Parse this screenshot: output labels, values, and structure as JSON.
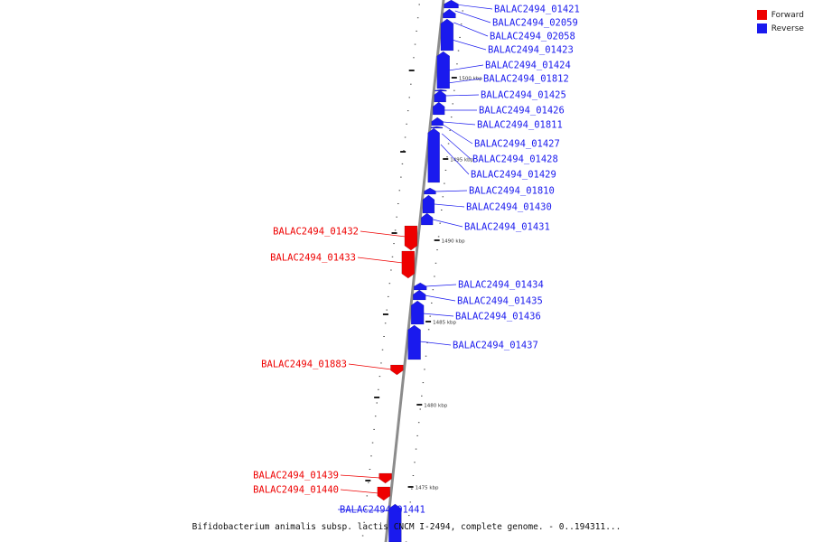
{
  "title": "Bifidobacterium animalis subsp. lactis CNCM I-2494, complete genome. - 0..194311...",
  "legend": [
    {
      "label": "Forward",
      "color": "#ee0000"
    },
    {
      "label": "Reverse",
      "color": "#1a1aee"
    }
  ],
  "colors": {
    "forward": "#ee0000",
    "reverse": "#1a1aee",
    "backbone": "#8c8c8c"
  },
  "scale_labels": [
    "1500 kbp",
    "1495 kbp",
    "1490 kbp",
    "1485 kbp",
    "1480 kbp",
    "1475 kbp"
  ],
  "genes": [
    {
      "id": "BALAC2494_01421",
      "strand": "reverse"
    },
    {
      "id": "BALAC2494_02059",
      "strand": "reverse"
    },
    {
      "id": "BALAC2494_02058",
      "strand": "reverse"
    },
    {
      "id": "BALAC2494_01423",
      "strand": "reverse"
    },
    {
      "id": "BALAC2494_01424",
      "strand": "reverse"
    },
    {
      "id": "BALAC2494_01812",
      "strand": "reverse"
    },
    {
      "id": "BALAC2494_01425",
      "strand": "reverse"
    },
    {
      "id": "BALAC2494_01426",
      "strand": "reverse"
    },
    {
      "id": "BALAC2494_01811",
      "strand": "reverse"
    },
    {
      "id": "BALAC2494_01427",
      "strand": "reverse"
    },
    {
      "id": "BALAC2494_01428",
      "strand": "reverse"
    },
    {
      "id": "BALAC2494_01429",
      "strand": "reverse"
    },
    {
      "id": "BALAC2494_01810",
      "strand": "reverse"
    },
    {
      "id": "BALAC2494_01430",
      "strand": "reverse"
    },
    {
      "id": "BALAC2494_01431",
      "strand": "reverse"
    },
    {
      "id": "BALAC2494_01432",
      "strand": "forward"
    },
    {
      "id": "BALAC2494_01433",
      "strand": "forward"
    },
    {
      "id": "BALAC2494_01434",
      "strand": "reverse"
    },
    {
      "id": "BALAC2494_01435",
      "strand": "reverse"
    },
    {
      "id": "BALAC2494_01436",
      "strand": "reverse"
    },
    {
      "id": "BALAC2494_01437",
      "strand": "reverse"
    },
    {
      "id": "BALAC2494_01883",
      "strand": "forward"
    },
    {
      "id": "BALAC2494_01439",
      "strand": "forward"
    },
    {
      "id": "BALAC2494_01440",
      "strand": "forward"
    },
    {
      "id": "BALAC2494_01441",
      "strand": "reverse"
    }
  ]
}
